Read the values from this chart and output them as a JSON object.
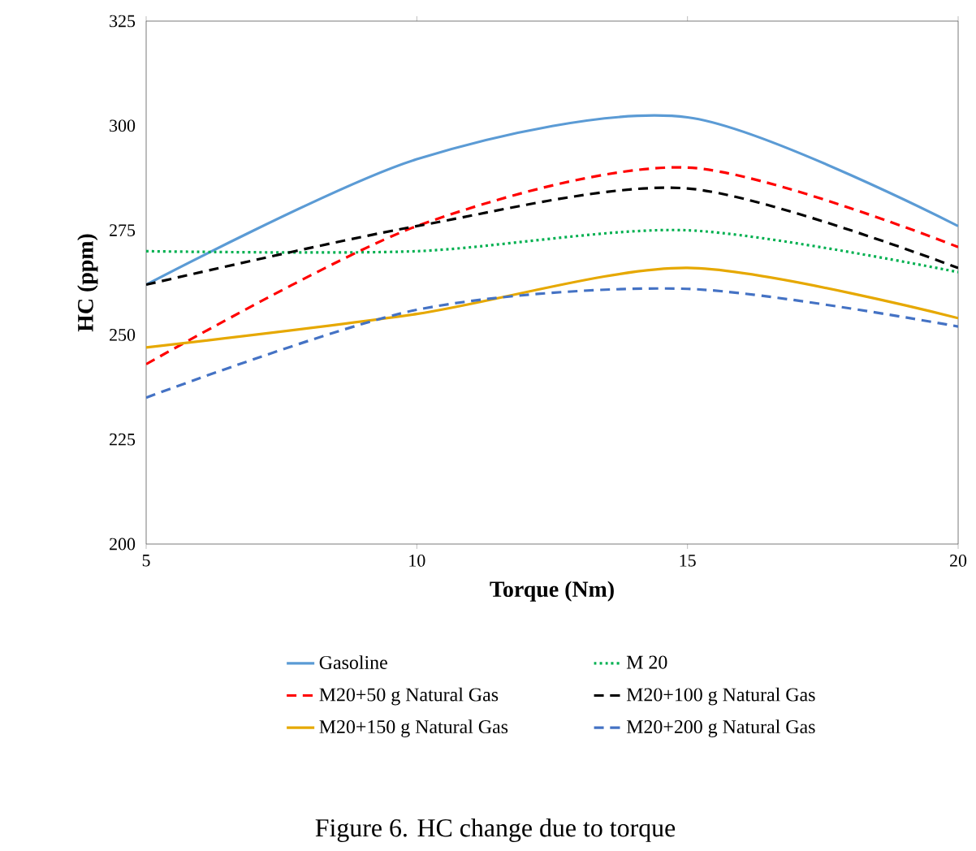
{
  "chart_data": {
    "type": "line",
    "title": "Figure 6. HC change due to torque",
    "xlabel": "Torque (Nm)",
    "ylabel": "HC (ppm)",
    "x": [
      5,
      10,
      15,
      20
    ],
    "xlim": [
      5,
      20
    ],
    "xticks": [
      5,
      10,
      15,
      20
    ],
    "ylim": [
      200,
      325
    ],
    "yticks": [
      200,
      225,
      250,
      275,
      300,
      325
    ],
    "legend": "bottom",
    "grid": false,
    "series": [
      {
        "name": "Gasoline",
        "color": "#5b9bd5",
        "line_style": "solid",
        "values": [
          262,
          292,
          302,
          276
        ]
      },
      {
        "name": "M 20",
        "color": "#00b050",
        "line_style": "dotted",
        "values": [
          270,
          270,
          275,
          265
        ]
      },
      {
        "name": "M20+50 g Natural Gas",
        "color": "#ff0000",
        "line_style": "dashed",
        "values": [
          243,
          276,
          290,
          271
        ]
      },
      {
        "name": "M20+100 g Natural Gas",
        "color": "#000000",
        "line_style": "dashed",
        "values": [
          262,
          276,
          285,
          266
        ]
      },
      {
        "name": "M20+150 g Natural Gas",
        "color": "#e6a800",
        "line_style": "solid",
        "values": [
          247,
          255,
          266,
          254
        ]
      },
      {
        "name": "M20+200 g Natural Gas",
        "color": "#4472c4",
        "line_style": "dashed",
        "values": [
          235,
          256,
          261,
          252
        ]
      }
    ]
  }
}
